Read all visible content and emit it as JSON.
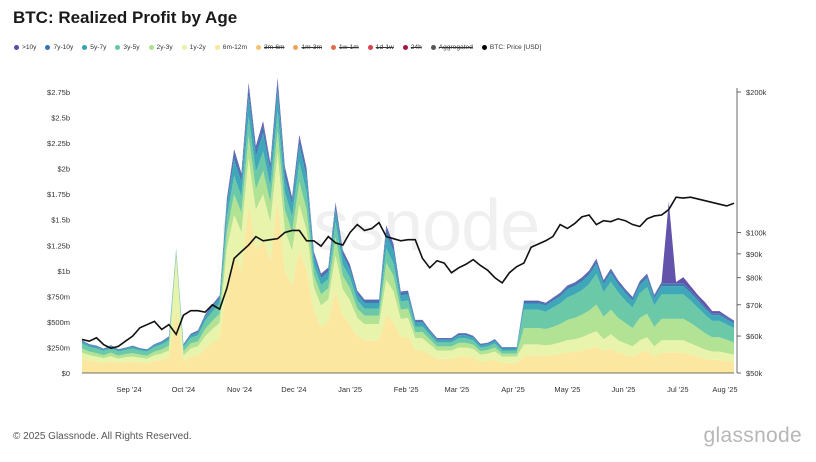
{
  "title": "BTC: Realized Profit by Age",
  "legend": [
    {
      "label": ">10y",
      "color": "#5b4aa6",
      "active": true
    },
    {
      "label": "7y-10y",
      "color": "#3b6fb0",
      "active": true
    },
    {
      "label": "5y-7y",
      "color": "#34a3b4",
      "active": true
    },
    {
      "label": "3y-5y",
      "color": "#64c6a2",
      "active": true
    },
    {
      "label": "2y-3y",
      "color": "#aee08d",
      "active": true
    },
    {
      "label": "1y-2y",
      "color": "#e7f3a6",
      "active": true
    },
    {
      "label": "6m-12m",
      "color": "#fbe69a",
      "active": true
    },
    {
      "label": "3m-6m",
      "color": "#f6c46e",
      "active": false
    },
    {
      "label": "1m-3m",
      "color": "#f2a15a",
      "active": false
    },
    {
      "label": "1w-1m",
      "color": "#e66b4e",
      "active": false
    },
    {
      "label": "1d-1w",
      "color": "#d9434f",
      "active": false
    },
    {
      "label": "24h",
      "color": "#a5163a",
      "active": false
    },
    {
      "label": "Aggregated",
      "color": "#555555",
      "active": false
    },
    {
      "label": "BTC: Price [USD]",
      "color": "#000000",
      "active": true
    }
  ],
  "watermark": "glassnode",
  "footer": "© 2025 Glassnode. All Rights Reserved.",
  "brand": "glassnode",
  "chart_data": {
    "type": "area",
    "title": "BTC: Realized Profit by Age",
    "x": [
      "2024-08-20",
      "2024-08-24",
      "2024-08-28",
      "2024-09-01",
      "2024-09-05",
      "2024-09-09",
      "2024-09-13",
      "2024-09-17",
      "2024-09-21",
      "2024-09-25",
      "2024-09-29",
      "2024-10-03",
      "2024-10-07",
      "2024-10-11",
      "2024-10-15",
      "2024-10-19",
      "2024-10-23",
      "2024-10-27",
      "2024-10-31",
      "2024-11-04",
      "2024-11-08",
      "2024-11-12",
      "2024-11-16",
      "2024-11-20",
      "2024-11-24",
      "2024-11-28",
      "2024-12-02",
      "2024-12-06",
      "2024-12-10",
      "2024-12-14",
      "2024-12-18",
      "2024-12-22",
      "2024-12-26",
      "2024-12-30",
      "2025-01-03",
      "2025-01-07",
      "2025-01-11",
      "2025-01-15",
      "2025-01-19",
      "2025-01-23",
      "2025-01-27",
      "2025-01-31",
      "2025-02-04",
      "2025-02-08",
      "2025-02-12",
      "2025-02-16",
      "2025-02-20",
      "2025-02-24",
      "2025-02-28",
      "2025-03-04",
      "2025-03-08",
      "2025-03-12",
      "2025-03-16",
      "2025-03-20",
      "2025-03-24",
      "2025-03-28",
      "2025-04-01",
      "2025-04-05",
      "2025-04-09",
      "2025-04-13",
      "2025-04-17",
      "2025-04-21",
      "2025-04-25",
      "2025-04-29",
      "2025-05-03",
      "2025-05-07",
      "2025-05-11",
      "2025-05-15",
      "2025-05-19",
      "2025-05-23",
      "2025-05-27",
      "2025-05-31",
      "2025-06-04",
      "2025-06-08",
      "2025-06-12",
      "2025-06-16",
      "2025-06-20",
      "2025-06-24",
      "2025-06-28",
      "2025-07-02",
      "2025-07-06",
      "2025-07-10",
      "2025-07-14",
      "2025-07-18",
      "2025-07-22",
      "2025-07-26",
      "2025-07-30",
      "2025-08-03",
      "2025-08-07",
      "2025-08-11",
      "2025-08-15"
    ],
    "series": [
      {
        "name": "6m-12m",
        "values": [
          140,
          120,
          110,
          100,
          115,
          95,
          105,
          110,
          100,
          95,
          120,
          130,
          150,
          620,
          110,
          160,
          170,
          240,
          300,
          330,
          880,
          1150,
          1000,
          1650,
          1200,
          1300,
          1100,
          1700,
          1000,
          850,
          1200,
          1000,
          600,
          450,
          500,
          800,
          560,
          480,
          360,
          320,
          320,
          320,
          560,
          500,
          350,
          360,
          220,
          220,
          180,
          140,
          140,
          140,
          160,
          160,
          150,
          110,
          120,
          130,
          100,
          100,
          100,
          170,
          170,
          170,
          170,
          180,
          190,
          200,
          210,
          220,
          240,
          260,
          210,
          240,
          200,
          180,
          160,
          200,
          220,
          160,
          200,
          200,
          200,
          200,
          180,
          160,
          140,
          130,
          130,
          120,
          110
        ]
      },
      {
        "name": "1y-2y",
        "values": [
          60,
          55,
          50,
          45,
          50,
          45,
          50,
          50,
          50,
          45,
          55,
          60,
          70,
          500,
          60,
          80,
          90,
          120,
          130,
          160,
          340,
          400,
          380,
          450,
          400,
          450,
          380,
          450,
          400,
          350,
          450,
          400,
          240,
          210,
          220,
          350,
          260,
          230,
          180,
          160,
          160,
          160,
          350,
          300,
          180,
          180,
          120,
          120,
          100,
          80,
          80,
          80,
          90,
          90,
          85,
          70,
          70,
          80,
          60,
          60,
          60,
          110,
          110,
          110,
          100,
          100,
          110,
          120,
          120,
          130,
          140,
          150,
          120,
          140,
          120,
          110,
          100,
          120,
          130,
          100,
          120,
          120,
          120,
          120,
          110,
          100,
          90,
          80,
          80,
          75,
          70
        ]
      },
      {
        "name": "2y-3y",
        "values": [
          40,
          35,
          35,
          30,
          35,
          30,
          30,
          35,
          30,
          30,
          35,
          40,
          45,
          55,
          40,
          50,
          50,
          70,
          80,
          90,
          160,
          200,
          190,
          220,
          200,
          230,
          190,
          220,
          200,
          180,
          220,
          200,
          120,
          110,
          110,
          180,
          130,
          120,
          90,
          80,
          80,
          80,
          170,
          150,
          90,
          90,
          60,
          60,
          50,
          40,
          40,
          40,
          45,
          45,
          42,
          35,
          35,
          40,
          30,
          30,
          30,
          160,
          160,
          160,
          160,
          170,
          180,
          200,
          210,
          220,
          230,
          260,
          220,
          240,
          220,
          200,
          180,
          220,
          230,
          190,
          210,
          210,
          210,
          210,
          200,
          180,
          160,
          140,
          140,
          130,
          120
        ]
      },
      {
        "name": "3y-5y",
        "values": [
          50,
          45,
          45,
          40,
          45,
          40,
          40,
          45,
          40,
          40,
          45,
          50,
          55,
          25,
          45,
          55,
          60,
          80,
          90,
          100,
          140,
          180,
          160,
          190,
          170,
          190,
          160,
          190,
          170,
          150,
          190,
          170,
          100,
          90,
          90,
          150,
          110,
          100,
          80,
          70,
          70,
          70,
          140,
          120,
          80,
          80,
          55,
          55,
          45,
          40,
          40,
          40,
          45,
          45,
          42,
          35,
          35,
          40,
          30,
          30,
          30,
          180,
          180,
          180,
          170,
          190,
          200,
          220,
          230,
          240,
          260,
          300,
          240,
          270,
          250,
          220,
          200,
          240,
          260,
          210,
          240,
          240,
          240,
          240,
          220,
          200,
          180,
          160,
          160,
          150,
          140
        ]
      },
      {
        "name": "5y-7y",
        "values": [
          20,
          18,
          18,
          15,
          18,
          15,
          15,
          18,
          15,
          15,
          18,
          20,
          25,
          10,
          18,
          25,
          30,
          40,
          45,
          50,
          120,
          160,
          140,
          200,
          150,
          180,
          140,
          200,
          150,
          120,
          170,
          150,
          80,
          70,
          70,
          120,
          90,
          80,
          60,
          55,
          55,
          55,
          140,
          120,
          60,
          60,
          40,
          40,
          30,
          25,
          25,
          25,
          30,
          30,
          28,
          22,
          22,
          25,
          20,
          20,
          20,
          60,
          60,
          60,
          60,
          65,
          70,
          80,
          80,
          85,
          90,
          100,
          80,
          90,
          80,
          75,
          70,
          80,
          90,
          70,
          80,
          80,
          80,
          80,
          75,
          70,
          60,
          55,
          55,
          50,
          45
        ]
      },
      {
        "name": "7y-10y",
        "values": [
          8,
          7,
          7,
          6,
          7,
          6,
          6,
          7,
          6,
          6,
          7,
          8,
          10,
          5,
          7,
          10,
          12,
          16,
          18,
          20,
          50,
          70,
          60,
          90,
          70,
          80,
          60,
          90,
          70,
          50,
          70,
          60,
          35,
          30,
          30,
          50,
          38,
          35,
          26,
          24,
          24,
          24,
          60,
          50,
          26,
          26,
          18,
          18,
          14,
          12,
          12,
          12,
          14,
          14,
          13,
          10,
          10,
          12,
          9,
          9,
          9,
          20,
          20,
          20,
          20,
          22,
          24,
          26,
          26,
          28,
          30,
          34,
          28,
          30,
          28,
          26,
          24,
          28,
          30,
          24,
          28,
          28,
          28,
          28,
          26,
          24,
          22,
          20,
          20,
          18,
          16
        ]
      },
      {
        "name": ">10y",
        "values": [
          3,
          3,
          3,
          2,
          3,
          2,
          2,
          3,
          2,
          2,
          3,
          3,
          4,
          2,
          3,
          4,
          5,
          6,
          7,
          8,
          20,
          30,
          25,
          40,
          30,
          35,
          25,
          40,
          30,
          20,
          30,
          25,
          15,
          12,
          12,
          20,
          15,
          14,
          10,
          9,
          9,
          9,
          25,
          20,
          10,
          10,
          7,
          7,
          5,
          5,
          5,
          5,
          6,
          6,
          5,
          4,
          4,
          5,
          3,
          3,
          3,
          8,
          8,
          8,
          8,
          9,
          10,
          10,
          10,
          11,
          12,
          14,
          11,
          12,
          11,
          10,
          10,
          11,
          12,
          10,
          11,
          800,
          11,
          60,
          40,
          30,
          40,
          20,
          20,
          15,
          12
        ]
      }
    ],
    "price": {
      "name": "BTC: Price [USD]",
      "values": [
        59000,
        58500,
        59500,
        57500,
        56500,
        57000,
        58500,
        60000,
        62500,
        63500,
        64500,
        62000,
        63500,
        60500,
        66500,
        68000,
        68000,
        67500,
        70000,
        68500,
        76000,
        88000,
        91000,
        94000,
        98000,
        96000,
        96500,
        97000,
        100000,
        101000,
        101000,
        96000,
        96000,
        93500,
        98000,
        95000,
        94000,
        100000,
        104000,
        101000,
        102000,
        105000,
        98000,
        97000,
        96000,
        96500,
        96500,
        88000,
        84000,
        87000,
        86000,
        82000,
        84000,
        85500,
        87500,
        85000,
        83000,
        80000,
        78000,
        82000,
        84500,
        86000,
        93000,
        94500,
        96000,
        98000,
        104000,
        102000,
        104500,
        108000,
        109000,
        104000,
        106000,
        105500,
        107000,
        106000,
        104000,
        103000,
        107000,
        108500,
        109000,
        112000,
        119000,
        118500,
        119000,
        118000,
        117000,
        116000,
        115000,
        114000,
        115500
      ]
    },
    "ylabel_left_ticks": [
      "$0",
      "$250m",
      "$500m",
      "$750m",
      "$1b",
      "$1.25b",
      "$1.5b",
      "$1.75b",
      "$2b",
      "$2.25b",
      "$2.5b",
      "$2.75b"
    ],
    "ylabel_right_ticks": [
      "$50k",
      "$60k",
      "$70k",
      "$80k",
      "$90k",
      "$100k",
      "$200k"
    ],
    "x_tick_labels": [
      "Sep '24",
      "Oct '24",
      "Nov '24",
      "Dec '24",
      "Jan '25",
      "Feb '25",
      "Mar '25",
      "Apr '25",
      "May '25",
      "Jun '25",
      "Jul '25",
      "Aug '25"
    ],
    "ylim_left_m": [
      0,
      2750
    ],
    "ylim_right_usd": [
      50000,
      200000
    ],
    "right_scale": "log",
    "grid": false,
    "legend_position": "top-left"
  }
}
